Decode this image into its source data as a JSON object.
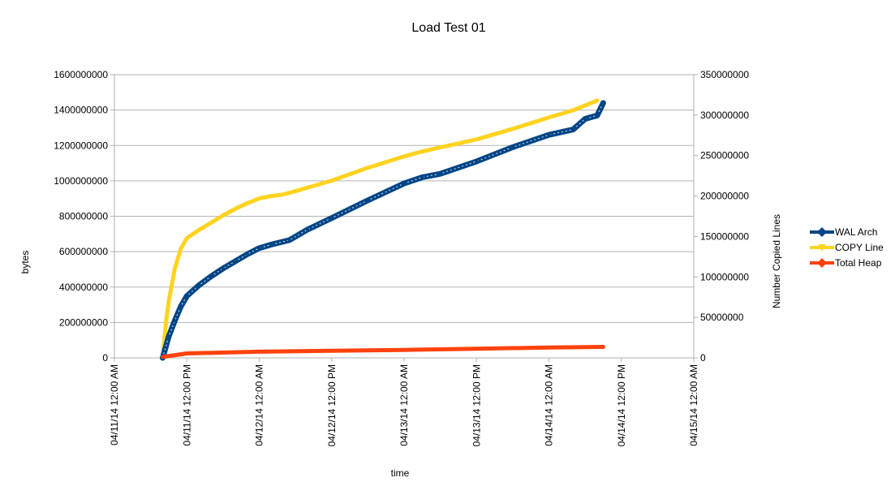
{
  "chart_data": {
    "type": "line",
    "title": "Load Test 01",
    "xlabel": "time",
    "ylabel": "bytes",
    "y2label": "Number Copied Lines",
    "x_ticks": [
      "04/11/14 12:00 AM",
      "04/11/14 12:00 PM",
      "04/12/14 12:00 AM",
      "04/12/14 12:00 PM",
      "04/13/14 12:00 AM",
      "04/13/14 12:00 PM",
      "04/14/14 12:00 AM",
      "04/14/14 12:00 PM",
      "04/15/14 12:00 AM"
    ],
    "xlim": [
      "04/11/14 12:00 AM",
      "04/15/14 12:00 AM"
    ],
    "y_ticks": [
      "0",
      "200000000",
      "400000000",
      "600000000",
      "800000000",
      "1000000000",
      "1200000000",
      "1400000000",
      "1600000000"
    ],
    "ylim": [
      0,
      1600000000
    ],
    "y2_ticks": [
      "0",
      "50000000",
      "100000000",
      "150000000",
      "200000000",
      "250000000",
      "300000000",
      "350000000"
    ],
    "y2lim": [
      0,
      350000000
    ],
    "grid": true,
    "legend": "right",
    "series": [
      {
        "name": "WAL Arch",
        "axis": "left",
        "color": "#004586",
        "marker": "diamond",
        "x": [
          "04/11/14 08:00 AM",
          "04/11/14 09:00 AM",
          "04/11/14 10:00 AM",
          "04/11/14 11:00 AM",
          "04/11/14 12:00 PM",
          "04/11/14 02:00 PM",
          "04/11/14 04:00 PM",
          "04/11/14 06:00 PM",
          "04/11/14 08:00 PM",
          "04/11/14 10:00 PM",
          "04/12/14 12:00 AM",
          "04/12/14 02:00 AM",
          "04/12/14 05:00 AM",
          "04/12/14 08:00 AM",
          "04/12/14 12:00 PM",
          "04/12/14 06:00 PM",
          "04/13/14 12:00 AM",
          "04/13/14 03:00 AM",
          "04/13/14 06:00 AM",
          "04/13/14 12:00 PM",
          "04/13/14 06:00 PM",
          "04/14/14 12:00 AM",
          "04/14/14 04:00 AM",
          "04/14/14 06:00 AM",
          "04/14/14 08:00 AM",
          "04/14/14 09:00 AM"
        ],
        "values": [
          0,
          120000000,
          210000000,
          290000000,
          350000000,
          410000000,
          460000000,
          505000000,
          545000000,
          585000000,
          620000000,
          640000000,
          665000000,
          725000000,
          790000000,
          890000000,
          985000000,
          1020000000,
          1040000000,
          1110000000,
          1190000000,
          1260000000,
          1290000000,
          1350000000,
          1370000000,
          1440000000
        ]
      },
      {
        "name": "COPY Line",
        "axis": "right",
        "color": "#ffd320",
        "marker": "triangle-down",
        "x": [
          "04/11/14 08:00 AM",
          "04/11/14 08:30 AM",
          "04/11/14 09:00 AM",
          "04/11/14 10:00 AM",
          "04/11/14 11:00 AM",
          "04/11/14 12:00 PM",
          "04/11/14 02:00 PM",
          "04/11/14 04:00 PM",
          "04/11/14 06:00 PM",
          "04/11/14 08:00 PM",
          "04/11/14 10:00 PM",
          "04/12/14 12:00 AM",
          "04/12/14 02:00 AM",
          "04/12/14 04:00 AM",
          "04/12/14 06:00 AM",
          "04/12/14 12:00 PM",
          "04/12/14 06:00 PM",
          "04/13/14 12:00 AM",
          "04/13/14 03:00 AM",
          "04/13/14 06:00 AM",
          "04/13/14 12:00 PM",
          "04/13/14 06:00 PM",
          "04/14/14 12:00 AM",
          "04/14/14 04:00 AM",
          "04/14/14 08:00 AM"
        ],
        "values": [
          0,
          40000000,
          70000000,
          110000000,
          135000000,
          148000000,
          158000000,
          167000000,
          176000000,
          184000000,
          191000000,
          197000000,
          200000000,
          202000000,
          206000000,
          219000000,
          235000000,
          249000000,
          255000000,
          260000000,
          270000000,
          283000000,
          297000000,
          306000000,
          318000000
        ]
      },
      {
        "name": "Total Heap",
        "axis": "left",
        "color": "#ff420e",
        "marker": "diamond",
        "x": [
          "04/11/14 08:00 AM",
          "04/11/14 12:00 PM",
          "04/12/14 12:00 AM",
          "04/12/14 12:00 PM",
          "04/13/14 12:00 AM",
          "04/13/14 12:00 PM",
          "04/14/14 12:00 AM",
          "04/14/14 09:00 AM"
        ],
        "values": [
          5000000,
          25000000,
          35000000,
          40000000,
          45000000,
          52000000,
          58000000,
          62000000
        ]
      }
    ]
  }
}
